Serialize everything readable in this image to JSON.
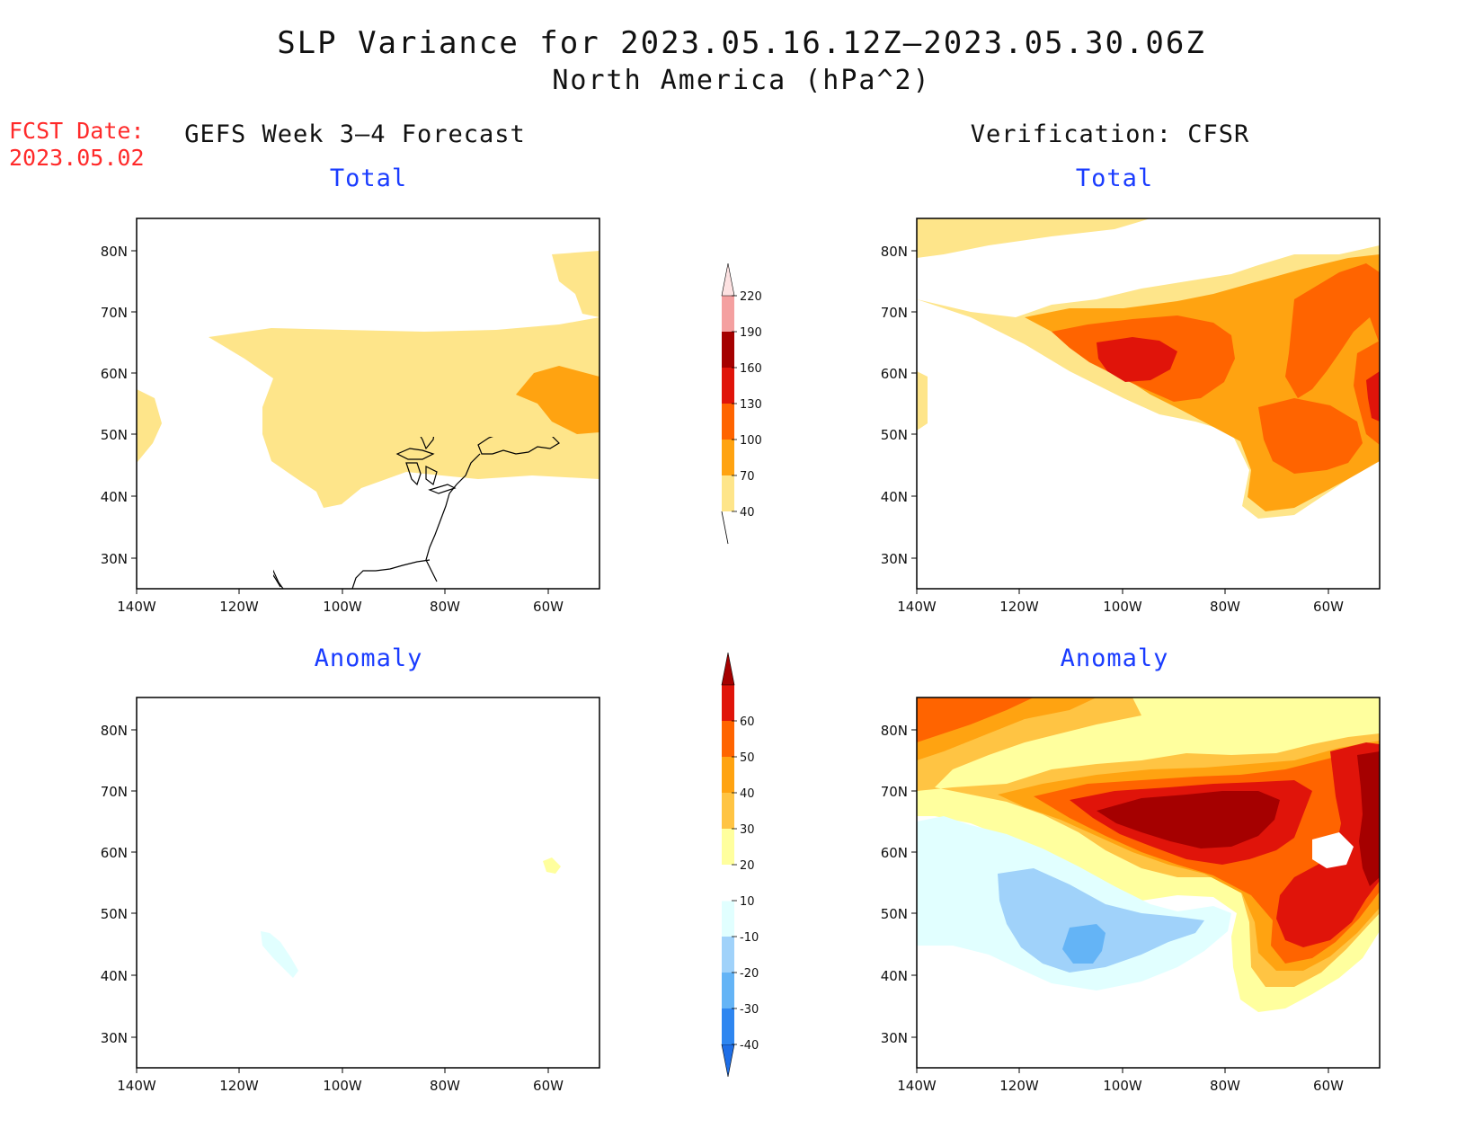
{
  "header": {
    "title": "SLP Variance for 2023.05.16.12Z–2023.05.30.06Z",
    "subtitle": "North America (hPa^2)"
  },
  "fcst_date": {
    "label": "FCST Date:",
    "value": "2023.05.02"
  },
  "columns": {
    "left_title": "GEFS Week 3–4 Forecast",
    "right_title": "Verification: CFSR"
  },
  "panel_labels": {
    "total": "Total",
    "anomaly": "Anomaly"
  },
  "axes": {
    "lat_ticks": [
      "80N",
      "70N",
      "60N",
      "50N",
      "40N",
      "30N"
    ],
    "lon_ticks": [
      "140W",
      "120W",
      "100W",
      "80W",
      "60W"
    ]
  },
  "colorbars": {
    "total": {
      "levels": [
        "40",
        "70",
        "100",
        "130",
        "160",
        "190",
        "220"
      ],
      "colors": [
        "#fee58a",
        "#ffa311",
        "#ff6400",
        "#e0140a",
        "#a50000",
        "#f4a0a0",
        "#fde2e2"
      ]
    },
    "anomaly": {
      "levels": [
        "-40",
        "-30",
        "-20",
        "-10",
        "10",
        "20",
        "30",
        "40",
        "50",
        "60"
      ],
      "colors": [
        "#1e6ee6",
        "#2e86f0",
        "#64b4f6",
        "#a0d2fa",
        "#e1ffff",
        "#ffffff",
        "#ffff9e",
        "#ffc443",
        "#ffa311",
        "#ff6400",
        "#e0140a",
        "#a50000"
      ]
    }
  }
}
